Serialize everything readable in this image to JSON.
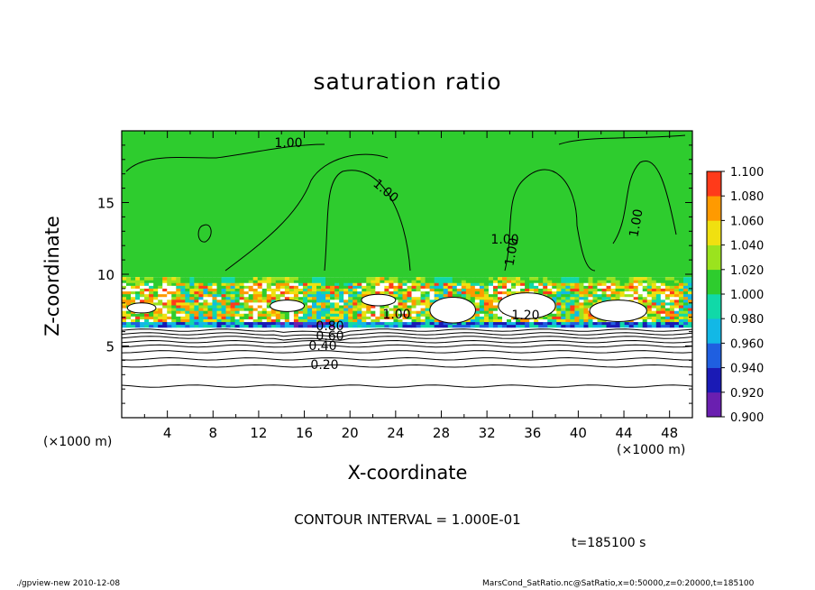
{
  "chart_data": {
    "type": "heatmap",
    "title": "saturation ratio",
    "xlabel": "X-coordinate",
    "ylabel": "Z-coordinate",
    "x_unit_left": "(×1000 m)",
    "x_unit_right": "(×1000 m)",
    "xlim": [
      0,
      50
    ],
    "ylim": [
      0,
      20
    ],
    "xticks": [
      4,
      8,
      12,
      16,
      20,
      24,
      28,
      32,
      36,
      40,
      44,
      48
    ],
    "yticks": [
      5,
      10,
      15
    ],
    "colorbar": {
      "levels": [
        0.9,
        0.92,
        0.94,
        0.96,
        0.98,
        1.0,
        1.02,
        1.04,
        1.06,
        1.08,
        1.1
      ],
      "labels": [
        "0.900",
        "0.920",
        "0.940",
        "0.960",
        "0.980",
        "1.000",
        "1.020",
        "1.040",
        "1.060",
        "1.080",
        "1.100"
      ],
      "colors": [
        "#6a1fb0",
        "#1a1ab5",
        "#1f5fe0",
        "#12b8e6",
        "#10d9a8",
        "#2ecc2e",
        "#9be31e",
        "#f0e010",
        "#ff9a00",
        "#ff3a1a",
        "#ff8a8a"
      ]
    },
    "contour_labels": [
      "1.00",
      "1.00",
      "1.00",
      "1.00",
      "1.00",
      "1.20",
      "1.00",
      "0.80",
      "0.60",
      "0.40",
      "0.20"
    ],
    "contour_interval": "CONTOUR INTERVAL = 1.000E-01",
    "time": "t=185100 s"
  },
  "footer": {
    "left": "./gpview-new   2010-12-08",
    "right": "MarsCond_SatRatio.nc@SatRatio,x=0:50000,z=0:20000,t=185100"
  }
}
